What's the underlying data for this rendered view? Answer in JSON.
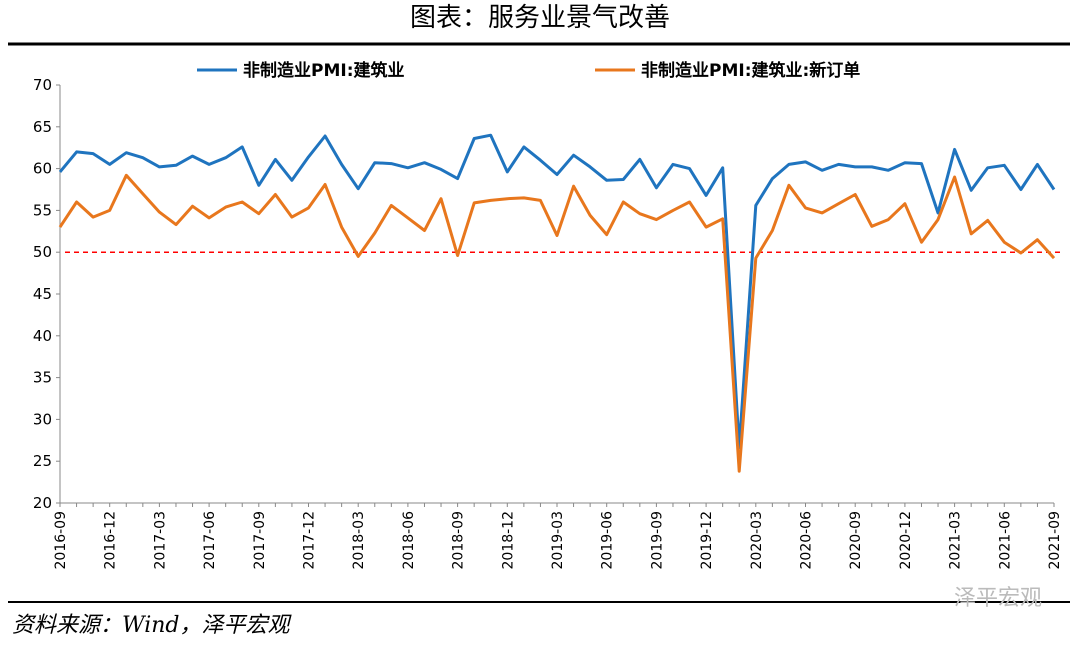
{
  "chart_data": {
    "type": "line",
    "title": "图表：服务业景气改善",
    "source": "资料来源：Wind，泽平宏观",
    "watermark": "泽平宏观",
    "categories": [
      "2016-09",
      null,
      null,
      "2016-12",
      null,
      null,
      "2017-03",
      null,
      null,
      "2017-06",
      null,
      null,
      "2017-09",
      null,
      null,
      "2017-12",
      null,
      null,
      "2018-03",
      null,
      null,
      "2018-06",
      null,
      null,
      "2018-09",
      null,
      null,
      "2018-12",
      null,
      null,
      "2019-03",
      null,
      null,
      "2019-06",
      null,
      null,
      "2019-09",
      null,
      null,
      "2019-12",
      null,
      null,
      "2020-03",
      null,
      null,
      "2020-06",
      null,
      null,
      "2020-09",
      null,
      null,
      "2020-12",
      null,
      null,
      "2021-03",
      null,
      null,
      "2021-06",
      null,
      null,
      "2021-09"
    ],
    "series": [
      {
        "name": "非制造业PMI:建筑业",
        "color": "#1f74bf",
        "values": [
          59.6,
          62.0,
          61.8,
          60.5,
          61.9,
          61.3,
          60.2,
          60.4,
          61.5,
          60.5,
          61.3,
          62.6,
          58.0,
          61.1,
          58.6,
          61.4,
          63.9,
          60.5,
          57.6,
          60.7,
          60.6,
          60.1,
          60.7,
          59.9,
          58.8,
          63.6,
          64.0,
          59.6,
          62.6,
          61.0,
          59.3,
          61.6,
          60.2,
          58.6,
          58.7,
          61.1,
          57.7,
          60.5,
          60.0,
          56.8,
          60.1,
          26.6,
          55.6,
          58.8,
          60.5,
          60.8,
          59.8,
          60.5,
          60.2,
          60.2,
          59.8,
          60.7,
          60.6,
          54.7,
          62.3,
          57.4,
          60.1,
          60.4,
          57.5,
          60.5,
          57.5
        ]
      },
      {
        "name": "非制造业PMI:建筑业:新订单",
        "color": "#e8771d",
        "values": [
          53.0,
          56.0,
          54.2,
          55.0,
          59.2,
          57.0,
          54.8,
          53.3,
          55.5,
          54.1,
          55.4,
          56.0,
          54.6,
          56.9,
          54.2,
          55.3,
          58.1,
          53.0,
          49.5,
          52.3,
          55.6,
          54.1,
          52.6,
          56.4,
          49.6,
          55.9,
          56.2,
          56.4,
          56.5,
          56.2,
          52.0,
          57.9,
          54.4,
          52.1,
          56.0,
          54.6,
          53.9,
          55.0,
          56.0,
          53.0,
          54.0,
          23.8,
          49.3,
          52.6,
          58.0,
          55.3,
          54.7,
          55.8,
          56.9,
          53.1,
          53.9,
          55.8,
          51.2,
          53.9,
          59.0,
          52.2,
          53.8,
          51.2,
          49.9,
          51.5,
          49.3
        ]
      }
    ],
    "ylim": [
      20,
      70
    ],
    "yticks": [
      20,
      25,
      30,
      35,
      40,
      45,
      50,
      55,
      60,
      65,
      70
    ],
    "reference_line": {
      "value": 50,
      "color": "#ff0000"
    },
    "grid": false
  }
}
